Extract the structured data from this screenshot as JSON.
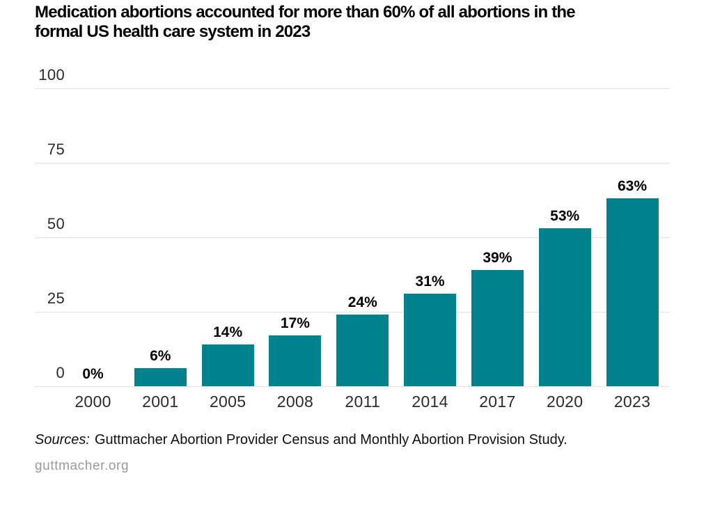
{
  "header": {
    "title_lines": [
      "Medication abortions accounted for more than 60% of all abortions in the",
      "formal US health care system in 2023"
    ]
  },
  "chart_data": {
    "type": "bar",
    "title": "Medication abortions accounted for more than 60% of all abortions in the formal US health care system in 2023",
    "categories": [
      "2000",
      "2001",
      "2005",
      "2008",
      "2011",
      "2014",
      "2017",
      "2020",
      "2023"
    ],
    "values": [
      0,
      6,
      14,
      17,
      24,
      31,
      39,
      53,
      63
    ],
    "value_labels": [
      "0%",
      "6%",
      "14%",
      "17%",
      "24%",
      "31%",
      "39%",
      "53%",
      "63%"
    ],
    "xlabel": "",
    "ylabel": "",
    "y_ticks": [
      100,
      75,
      50,
      25,
      0
    ],
    "ylim": [
      0,
      100
    ],
    "grid": true,
    "legend_position": "none",
    "bar_color": "#00818E",
    "gridline_color": "#e3e3e3",
    "axis_text_color": "#2b2b2b",
    "value_label_color": "#000000"
  },
  "footer": {
    "sources_label": "Sources:",
    "sources_text": "Guttmacher Abortion Provider Census and Monthly Abortion Provision Study.",
    "site": "guttmacher.org",
    "site_color": "#9a9a9a"
  }
}
